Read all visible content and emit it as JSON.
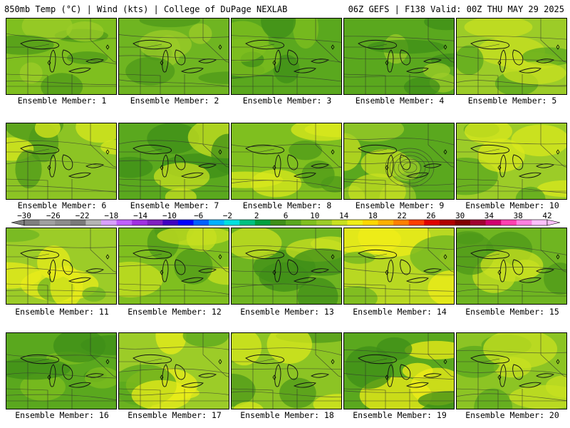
{
  "header": {
    "left": "850mb Temp (°C) | Wind (kts) | College of DuPage NEXLAB",
    "right": "06Z GEFS | F138 Valid: 00Z THU MAY 29 2025"
  },
  "members": [
    {
      "label": "Ensemble Member: 1",
      "base": "#7fbf1f",
      "accents": [
        "#4e9a1a",
        "#9ccc28"
      ]
    },
    {
      "label": "Ensemble Member: 2",
      "base": "#6fb521",
      "accents": [
        "#4e9a1a",
        "#9ccc28"
      ]
    },
    {
      "label": "Ensemble Member: 3",
      "base": "#5aa81e",
      "accents": [
        "#3f8f18",
        "#7fbf1f"
      ]
    },
    {
      "label": "Ensemble Member: 4",
      "base": "#5aa81e",
      "accents": [
        "#3f8f18",
        "#9ccc28"
      ]
    },
    {
      "label": "Ensemble Member: 5",
      "base": "#9ccc28",
      "accents": [
        "#c8e020",
        "#5aa81e"
      ]
    },
    {
      "label": "Ensemble Member: 6",
      "base": "#8cc424",
      "accents": [
        "#d9e81c",
        "#4e9a1a"
      ]
    },
    {
      "label": "Ensemble Member: 7",
      "base": "#5aa81e",
      "accents": [
        "#3f8f18",
        "#c8e020"
      ]
    },
    {
      "label": "Ensemble Member: 8",
      "base": "#7fbf1f",
      "accents": [
        "#d9e81c",
        "#4e9a1a"
      ]
    },
    {
      "label": "Ensemble Member: 9",
      "base": "#5aa81e",
      "accents": [
        "#9ccc28",
        "#c8e020"
      ]
    },
    {
      "label": "Ensemble Member: 10",
      "base": "#9ccc28",
      "accents": [
        "#d9e81c",
        "#5aa81e"
      ]
    },
    {
      "label": "Ensemble Member: 11",
      "base": "#9ccc28",
      "accents": [
        "#e8ec1a",
        "#6fb521"
      ]
    },
    {
      "label": "Ensemble Member: 12",
      "base": "#7fbf1f",
      "accents": [
        "#c8e020",
        "#4e9a1a"
      ]
    },
    {
      "label": "Ensemble Member: 13",
      "base": "#6fb521",
      "accents": [
        "#3f8f18",
        "#c8e020"
      ]
    },
    {
      "label": "Ensemble Member: 14",
      "base": "#b8d822",
      "accents": [
        "#f0ee18",
        "#6fb521"
      ]
    },
    {
      "label": "Ensemble Member: 15",
      "base": "#6fb521",
      "accents": [
        "#4e9a1a",
        "#c8e020"
      ]
    },
    {
      "label": "Ensemble Member: 16",
      "base": "#5aa81e",
      "accents": [
        "#3f8f18",
        "#7fbf1f"
      ]
    },
    {
      "label": "Ensemble Member: 17",
      "base": "#9ccc28",
      "accents": [
        "#e8ec1a",
        "#5aa81e"
      ]
    },
    {
      "label": "Ensemble Member: 18",
      "base": "#8cc424",
      "accents": [
        "#d9e81c",
        "#4e9a1a"
      ]
    },
    {
      "label": "Ensemble Member: 19",
      "base": "#5aa81e",
      "accents": [
        "#f0ee18",
        "#3f8f18"
      ]
    },
    {
      "label": "Ensemble Member: 20",
      "base": "#8cc424",
      "accents": [
        "#c8e020",
        "#5aa81e"
      ]
    }
  ],
  "colorbar": {
    "ticks": [
      "−30",
      "−26",
      "−22",
      "−18",
      "−14",
      "−10",
      "−6",
      "−2",
      "2",
      "6",
      "10",
      "14",
      "18",
      "22",
      "26",
      "30",
      "34",
      "38",
      "42"
    ],
    "colors": [
      "#7f7f7f",
      "#a0a0a0",
      "#8c8c8c",
      "#7a7a7a",
      "#b4b4b4",
      "#d8a0ff",
      "#c060ff",
      "#a030e0",
      "#8020c0",
      "#4000c0",
      "#0000ff",
      "#0060ff",
      "#00b0ff",
      "#00e0e0",
      "#00c080",
      "#00a040",
      "#3f8f18",
      "#5aa81e",
      "#7fbf1f",
      "#9ccc28",
      "#c8e020",
      "#f0ee18",
      "#ffd700",
      "#ffb000",
      "#ff8000",
      "#ff4000",
      "#e00000",
      "#b00000",
      "#800000",
      "#a00030",
      "#d00070",
      "#ff40b0",
      "#ff80e0",
      "#ffc0ff"
    ]
  }
}
